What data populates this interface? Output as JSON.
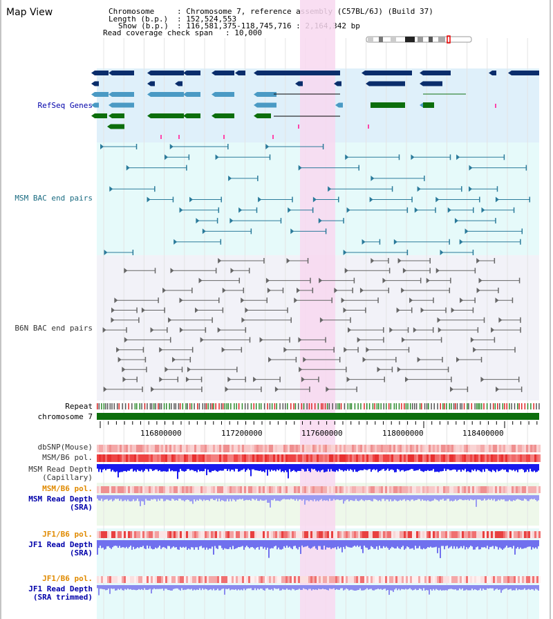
{
  "header": {
    "title": "Map View",
    "chromosome_key": "Chromosome",
    "chromosome_val": ": Chromosome 7, reference assembly (C57BL/6J) (Build 37)",
    "length_key": "Length (b.p.)",
    "length_val": ": 152,524,553",
    "show_key": "Show (b.p.)",
    "show_val": ": 116,581,375-118,745,716 : 2,164,342 bp",
    "coverage_key": "Read coverage check span",
    "coverage_val": ": 10,000"
  },
  "tracks": {
    "refseq": "RefSeq Genes",
    "msm_bac": "MSM BAC end pairs",
    "b6n_bac": "B6N BAC end pairs",
    "repeat": "Repeat",
    "chromosome": "chromosome 7",
    "dbsnp": "dbSNP(Mouse)",
    "msm_pol": "MSM/B6 pol.",
    "msm_depth_cap_1": "MSM Read Depth",
    "msm_depth_cap_2": "(Capillary)",
    "msm_pol2": "MSM/B6 pol.",
    "msm_depth_sra_1": "MSM Read Depth",
    "msm_depth_sra_2": "(SRA)",
    "jf1_pol": "JF1/B6 pol.",
    "jf1_depth_1": "JF1 Read Depth",
    "jf1_depth_2": "(SRA)",
    "jf1_pol2": "JF1/B6 pol.",
    "jf1_trim_1": "JF1 Read Depth",
    "jf1_trim_2": "(SRA trimmed)"
  },
  "axis": {
    "ticks": [
      "116800000",
      "117200000",
      "117600000",
      "118000000",
      "118400000"
    ]
  },
  "colors": {
    "refseq_bg": "#dff0fa",
    "msm_bg": "#e6fafa",
    "b6n_bg": "#f2f2f8",
    "highlight": "#f8d8f0",
    "refseq_dark": "#0a2d6b",
    "refseq_mid": "#4a9ac4",
    "refseq_green": "#0c6e0c",
    "msm_line": "#2a7a9a",
    "b6n_line": "#666666",
    "chromosome_bar": "#0c6e0c",
    "label_blue": "#0000aa",
    "label_orange": "#e08a00",
    "label_teal": "#186a80",
    "label_gray": "#333333"
  }
}
